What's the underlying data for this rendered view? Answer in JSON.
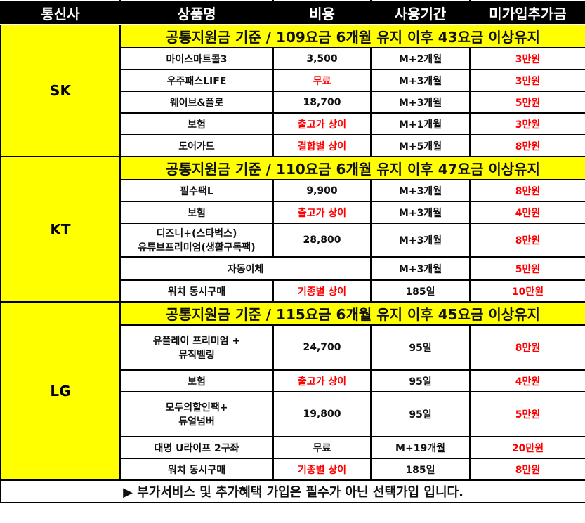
{
  "headers": [
    "통신사",
    "상품명",
    "비용",
    "사용기간",
    "미가입추가금"
  ],
  "colors": {
    "header_bg": "#000000",
    "banner_bg": "#ffff00",
    "highlight_text": "#ff0000"
  },
  "sections": [
    {
      "carrier": "SK",
      "banner": "공통지원금 기준 / 109요금 6개월 유지 이후 43요금 이상유지",
      "rows": [
        {
          "product": "마이스마트콜3",
          "cost": "3,500",
          "period": "M+2개월",
          "penalty": "3만원"
        },
        {
          "product": "우주패스LIFE",
          "cost": "무료",
          "period": "M+3개월",
          "penalty": "3만원"
        },
        {
          "product": "웨이브&플로",
          "cost": "18,700",
          "period": "M+3개월",
          "penalty": "5만원"
        },
        {
          "product": "보험",
          "cost": "출고가 상이",
          "period": "M+1개월",
          "penalty": "3만원"
        },
        {
          "product": "도어가드",
          "cost": "결합별 상이",
          "period": "M+5개월",
          "penalty": "8만원"
        }
      ]
    },
    {
      "carrier": "KT",
      "banner": "공통지원금 기준 / 110요금 6개월 유지 이후 47요금 이상유지",
      "rows": [
        {
          "product": "필수팩L",
          "cost": "9,900",
          "period": "M+3개월",
          "penalty": "8만원"
        },
        {
          "product": "보험",
          "cost": "출고가 상이",
          "period": "M+3개월",
          "penalty": "4만원"
        },
        {
          "product": "디즈니+(스타벅스)",
          "product2": "유튜브프리미엄(생활구독팩)",
          "cost": "28,800",
          "period": "M+3개월",
          "penalty": "8만원"
        },
        {
          "product": "자동이체",
          "period": "M+3개월",
          "penalty": "5만원"
        },
        {
          "product": "워치 동시구매",
          "cost": "기종별 상이",
          "period": "185일",
          "penalty": "10만원"
        }
      ]
    },
    {
      "carrier": "LG",
      "banner": "공통지원금 기준 / 115요금 6개월 유지 이후 45요금 이상유지",
      "rows": [
        {
          "product": "유플레이 프리미엄 +",
          "product2": "뮤직벨링",
          "cost": "24,700",
          "period": "95일",
          "penalty": "8만원"
        },
        {
          "product": "보험",
          "cost": "출고가 상이",
          "period": "95일",
          "penalty": "4만원"
        },
        {
          "product": "모두의할인팩+",
          "product2": "듀얼넘버",
          "cost": "19,800",
          "period": "95일",
          "penalty": "5만원"
        },
        {
          "product": "대명 U라이프 2구좌",
          "cost": "무료",
          "period": "M+19개월",
          "penalty": "20만원"
        },
        {
          "product": "워치 동시구매",
          "cost": "기종별 상이",
          "period": "185일",
          "penalty": "8만원"
        }
      ]
    }
  ],
  "footer": "▶ 부가서비스 및 추가혜택 가입은 필수가 아닌 선택가입 입니다."
}
